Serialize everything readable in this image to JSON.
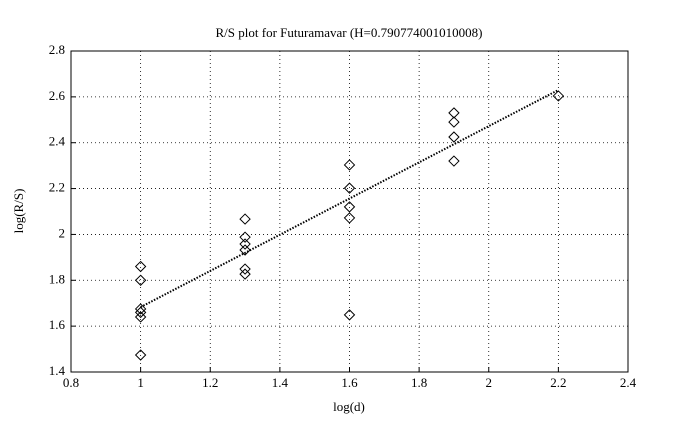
{
  "chart_data": {
    "type": "scatter",
    "title": "R/S plot for Futuramavar (H=0.790774001010008)",
    "x_label": "log(d)",
    "y_label": "log(R/S)",
    "x": [
      1,
      1,
      1,
      1,
      1,
      1,
      1.3,
      1.3,
      1.3,
      1.3,
      1.3,
      1.3,
      1.6,
      1.6,
      1.6,
      1.6,
      1.6,
      1.9,
      1.9,
      1.9,
      1.9,
      2.2
    ],
    "values": [
      1.86,
      1.8,
      1.675,
      1.66,
      1.64,
      1.474,
      2.067,
      1.988,
      1.958,
      1.932,
      1.849,
      1.827,
      2.303,
      2.202,
      2.12,
      2.072,
      1.649,
      2.53,
      2.49,
      2.425,
      2.32,
      2.604
    ],
    "color": "#000000",
    "fit": {
      "x": [
        1,
        2.2
      ],
      "values": [
        1.683,
        2.63
      ]
    },
    "xlim": [
      0.8,
      2.4
    ],
    "xticks": [
      0.8,
      1,
      1.2,
      1.4,
      1.6,
      1.8,
      2,
      2.2,
      2.4
    ],
    "ylim": [
      1.4,
      2.8
    ],
    "yticks": [
      1.4,
      1.6,
      1.8,
      2,
      2.2,
      2.4,
      2.6,
      2.8
    ],
    "grid": true
  }
}
